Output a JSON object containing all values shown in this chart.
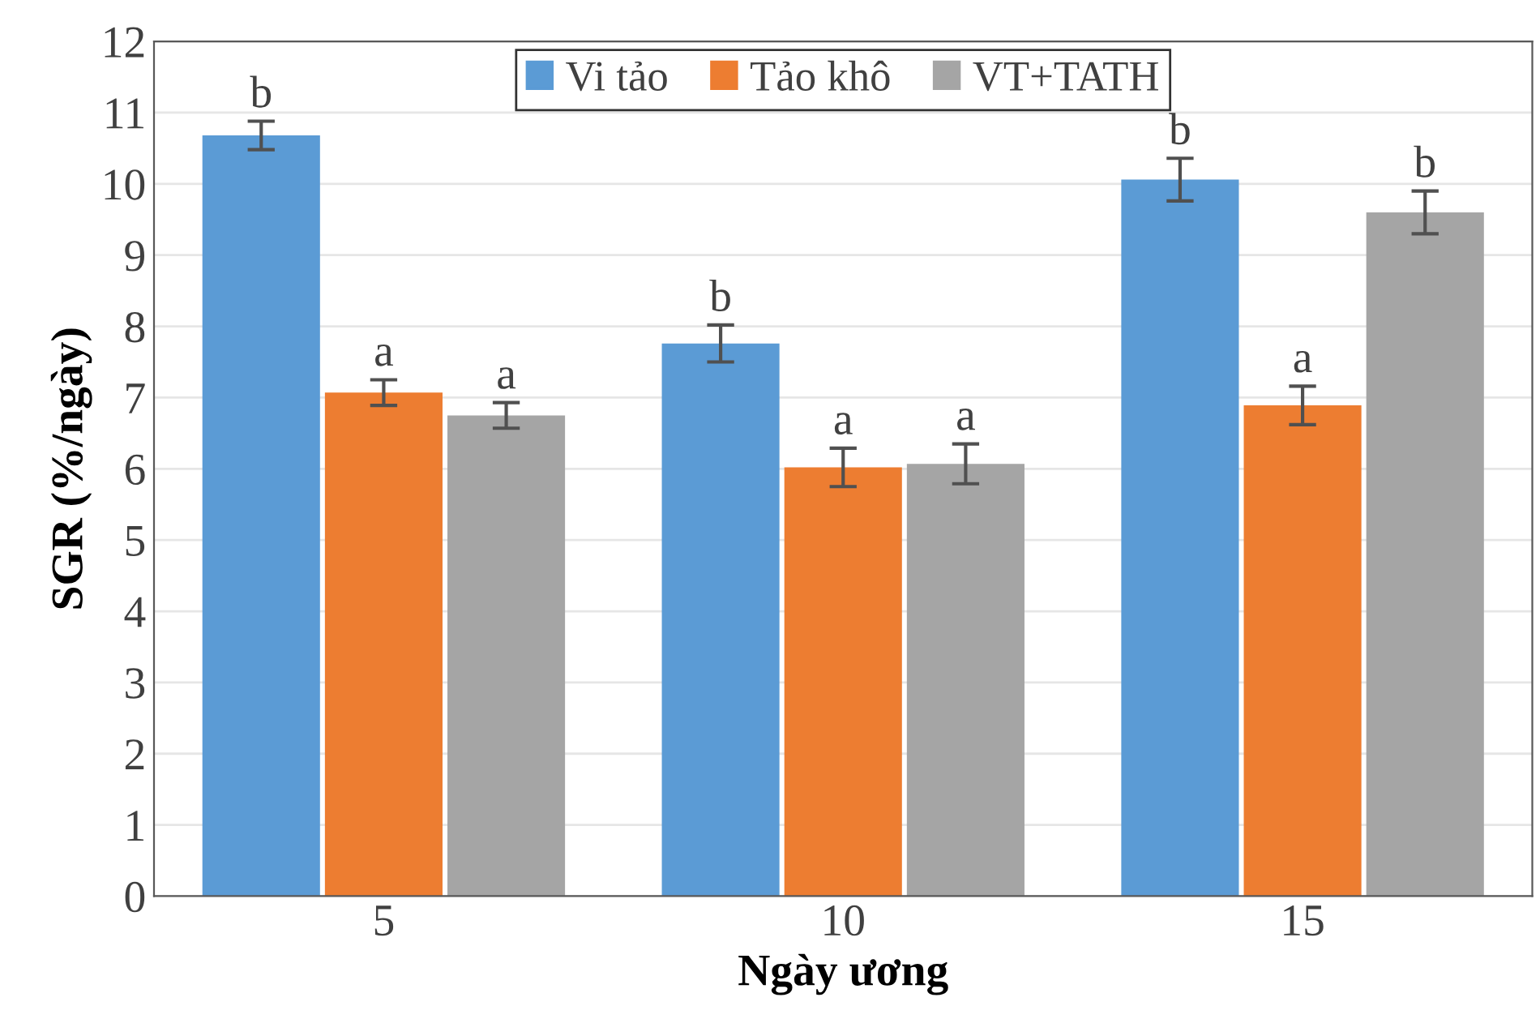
{
  "chart_data": {
    "type": "bar",
    "xlabel": "Ngày ương",
    "ylabel": "SGR (%/ngày)",
    "categories": [
      "5",
      "10",
      "15"
    ],
    "series": [
      {
        "name": "Vi tảo",
        "color": "#5b9bd5",
        "values": [
          10.68,
          7.76,
          10.06
        ],
        "errors": [
          0.2,
          0.26,
          0.3
        ],
        "value_labels": [
          "b",
          "b",
          "b"
        ]
      },
      {
        "name": "Tảo khô",
        "color": "#ed7d31",
        "values": [
          7.07,
          6.02,
          6.89
        ],
        "errors": [
          0.18,
          0.27,
          0.27
        ],
        "value_labels": [
          "a",
          "a",
          "a"
        ]
      },
      {
        "name": "VT+TATH",
        "color": "#a5a5a5",
        "values": [
          6.75,
          6.07,
          9.6
        ],
        "errors": [
          0.18,
          0.28,
          0.3
        ],
        "value_labels": [
          "a",
          "a",
          "b"
        ]
      }
    ],
    "ylim": [
      0,
      12
    ],
    "yticks": [
      0,
      1,
      2,
      3,
      4,
      5,
      6,
      7,
      8,
      9,
      10,
      11,
      12
    ],
    "grid": "y",
    "legend": "top"
  }
}
